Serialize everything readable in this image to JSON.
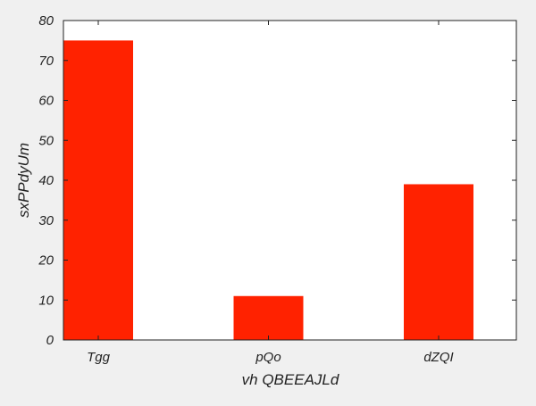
{
  "chart_data": {
    "type": "bar",
    "categories": [
      "Tgg",
      "pQo",
      "dZQI"
    ],
    "values": [
      75,
      11,
      39
    ],
    "title": "",
    "xlabel": "vh  QBEEAJLd",
    "ylabel": "sxPPdyUm",
    "ylim": [
      0,
      80
    ],
    "yticks": [
      0,
      10,
      20,
      30,
      40,
      50,
      60,
      70,
      80
    ],
    "bar_color": "#ff2200",
    "grid": false,
    "legend": "none"
  }
}
